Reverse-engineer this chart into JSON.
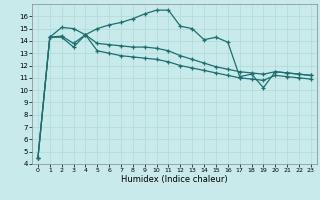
{
  "xlabel": "Humidex (Indice chaleur)",
  "background_color": "#c8eaea",
  "grid_color": "#b0d8d8",
  "line_color": "#1a7070",
  "xlim": [
    -0.5,
    23.5
  ],
  "ylim": [
    4,
    17.0
  ],
  "yticks": [
    4,
    5,
    6,
    7,
    8,
    9,
    10,
    11,
    12,
    13,
    14,
    15,
    16
  ],
  "xticks": [
    0,
    1,
    2,
    3,
    4,
    5,
    6,
    7,
    8,
    9,
    10,
    11,
    12,
    13,
    14,
    15,
    16,
    17,
    18,
    19,
    20,
    21,
    22,
    23
  ],
  "series": [
    {
      "x": [
        0,
        1,
        2,
        3,
        4,
        5,
        6,
        7,
        8,
        9,
        10,
        11,
        12,
        13,
        14,
        15,
        16,
        17,
        18,
        19,
        20,
        21,
        22,
        23
      ],
      "y": [
        4.5,
        14.3,
        15.1,
        15.0,
        14.5,
        15.0,
        15.3,
        15.5,
        15.8,
        16.2,
        16.5,
        16.5,
        15.2,
        15.0,
        14.1,
        14.3,
        13.9,
        11.1,
        11.3,
        10.2,
        11.5,
        11.4,
        11.3,
        11.2
      ]
    },
    {
      "x": [
        0,
        1,
        2,
        3,
        4,
        5,
        6,
        7,
        8,
        9,
        10,
        11,
        12,
        13,
        14,
        15,
        16,
        17,
        18,
        19,
        20,
        21,
        22,
        23
      ],
      "y": [
        4.5,
        14.3,
        14.4,
        13.8,
        14.5,
        13.8,
        13.7,
        13.6,
        13.5,
        13.5,
        13.4,
        13.2,
        12.8,
        12.5,
        12.2,
        11.9,
        11.7,
        11.5,
        11.4,
        11.3,
        11.5,
        11.4,
        11.3,
        11.2
      ]
    },
    {
      "x": [
        0,
        1,
        2,
        3,
        4,
        5,
        6,
        7,
        8,
        9,
        10,
        11,
        12,
        13,
        14,
        15,
        16,
        17,
        18,
        19,
        20,
        21,
        22,
        23
      ],
      "y": [
        4.5,
        14.3,
        14.3,
        13.5,
        14.5,
        13.2,
        13.0,
        12.8,
        12.7,
        12.6,
        12.5,
        12.3,
        12.0,
        11.8,
        11.6,
        11.4,
        11.2,
        11.0,
        10.9,
        10.8,
        11.2,
        11.1,
        11.0,
        10.9
      ]
    }
  ]
}
